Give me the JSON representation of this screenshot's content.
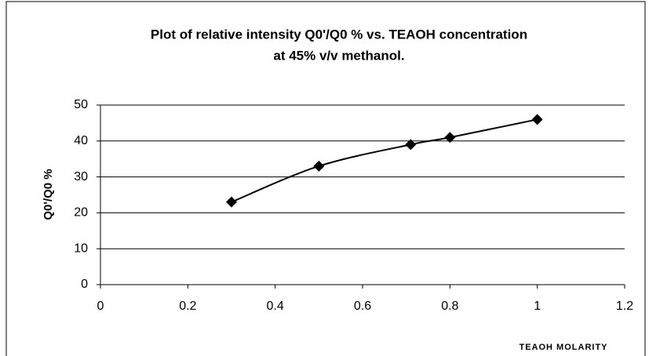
{
  "chart_data": {
    "type": "line",
    "title": [
      "Plot of relative intensity Q0'/Q0 % vs. TEAOH concentration",
      "at 45% v/v methanol."
    ],
    "x_label": "TEAOH MOLARITY",
    "y_label": "Q0'/Q0 %",
    "x": [
      0.3,
      0.5,
      0.71,
      0.8,
      1.0
    ],
    "series": [
      {
        "name": "Q0'/Q0 %",
        "color": "#000000",
        "values": [
          23,
          33,
          39,
          41,
          46
        ]
      }
    ],
    "xlim": [
      0,
      1.2
    ],
    "xticks": [
      0,
      0.2,
      0.4,
      0.6,
      0.8,
      1,
      1.2
    ],
    "ylim": [
      0,
      50
    ],
    "yticks": [
      0,
      10,
      20,
      30,
      40,
      50
    ],
    "grid": true,
    "smooth": true
  }
}
